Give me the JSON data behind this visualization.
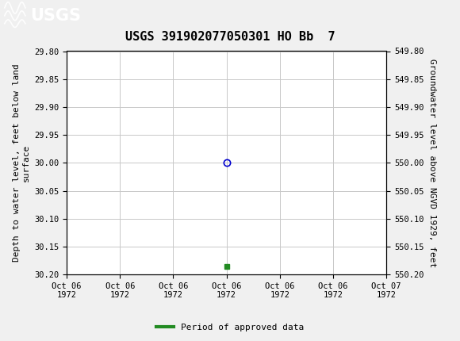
{
  "title": "USGS 391902077050301 HO Bb  7",
  "header_color": "#1a6b3c",
  "background_color": "#f0f0f0",
  "plot_background": "#ffffff",
  "grid_color": "#c8c8c8",
  "left_ylabel": "Depth to water level, feet below land\nsurface",
  "right_ylabel": "Groundwater level above NGVD 1929, feet",
  "ylim_left": [
    29.8,
    30.2
  ],
  "ylim_right": [
    549.8,
    550.2
  ],
  "yticks_left": [
    29.8,
    29.85,
    29.9,
    29.95,
    30.0,
    30.05,
    30.1,
    30.15,
    30.2
  ],
  "yticks_right": [
    549.8,
    549.85,
    549.9,
    549.95,
    550.0,
    550.05,
    550.1,
    550.15,
    550.2
  ],
  "data_point_x": 3.0,
  "data_point_y": 30.0,
  "data_point_color": "#0000cd",
  "data_point_marker": "o",
  "data_point_size": 6,
  "green_square_x": 3.0,
  "green_square_y": 30.185,
  "green_square_color": "#228B22",
  "xlim": [
    0,
    6
  ],
  "xtick_labels": [
    "Oct 06\n1972",
    "Oct 06\n1972",
    "Oct 06\n1972",
    "Oct 06\n1972",
    "Oct 06\n1972",
    "Oct 06\n1972",
    "Oct 07\n1972"
  ],
  "xtick_positions": [
    0,
    1,
    2,
    3,
    4,
    5,
    6
  ],
  "legend_label": "Period of approved data",
  "legend_color": "#228B22",
  "font_family": "monospace",
  "title_fontsize": 11,
  "axis_label_fontsize": 8,
  "tick_fontsize": 7.5,
  "legend_fontsize": 8
}
